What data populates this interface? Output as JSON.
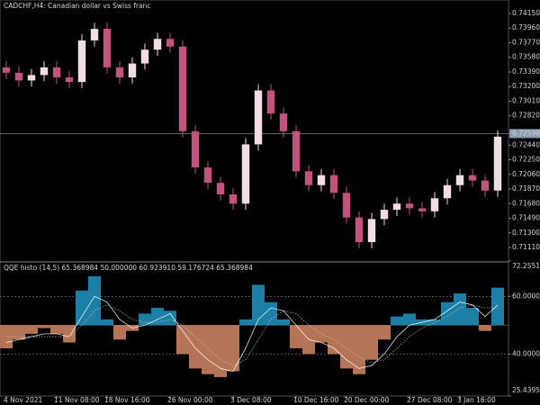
{
  "chart_data": [
    {
      "type": "candlestick",
      "title": "CADCHF,H4:  Canadian dollar vs Swiss franc",
      "open": [
        0.7345,
        0.7338,
        0.7328,
        0.7335,
        0.7345,
        0.7332,
        0.7326,
        0.738,
        0.7395,
        0.7345,
        0.7332,
        0.735,
        0.7368,
        0.7382,
        0.7372,
        0.7262,
        0.7215,
        0.7195,
        0.718,
        0.7168,
        0.7245,
        0.7315,
        0.7285,
        0.7262,
        0.721,
        0.7192,
        0.7205,
        0.7182,
        0.715,
        0.7118,
        0.7148,
        0.716,
        0.7168,
        0.7162,
        0.7158,
        0.7175,
        0.7192,
        0.7205,
        0.7198,
        0.7185
      ],
      "high": [
        0.7353,
        0.7346,
        0.7343,
        0.7353,
        0.7353,
        0.734,
        0.7388,
        0.7403,
        0.7403,
        0.7353,
        0.7358,
        0.7376,
        0.739,
        0.739,
        0.738,
        0.727,
        0.7223,
        0.7203,
        0.7188,
        0.7253,
        0.7323,
        0.7323,
        0.7293,
        0.727,
        0.7218,
        0.7213,
        0.7213,
        0.719,
        0.7158,
        0.7156,
        0.7168,
        0.7176,
        0.7176,
        0.717,
        0.7183,
        0.72,
        0.7213,
        0.7213,
        0.7206,
        0.7263
      ],
      "low": [
        0.733,
        0.732,
        0.732,
        0.7327,
        0.7324,
        0.7318,
        0.7318,
        0.7372,
        0.7337,
        0.7324,
        0.7324,
        0.7342,
        0.736,
        0.7364,
        0.7254,
        0.7207,
        0.7187,
        0.7172,
        0.716,
        0.716,
        0.7237,
        0.7277,
        0.7254,
        0.7202,
        0.7184,
        0.7184,
        0.7174,
        0.7142,
        0.711,
        0.711,
        0.714,
        0.7152,
        0.7154,
        0.715,
        0.715,
        0.7167,
        0.7184,
        0.719,
        0.7177,
        0.7177
      ],
      "close": [
        0.7338,
        0.7328,
        0.7335,
        0.7345,
        0.7332,
        0.7326,
        0.738,
        0.7395,
        0.7345,
        0.7332,
        0.735,
        0.7368,
        0.7382,
        0.7372,
        0.7262,
        0.7215,
        0.7195,
        0.718,
        0.7168,
        0.7245,
        0.7315,
        0.7285,
        0.7262,
        0.721,
        0.7192,
        0.7205,
        0.7182,
        0.715,
        0.7118,
        0.7148,
        0.716,
        0.7168,
        0.7162,
        0.7158,
        0.7175,
        0.7192,
        0.7205,
        0.7198,
        0.7185,
        0.7255
      ],
      "up_color": "#f2dce6",
      "down_color": "#c2527e",
      "ylim": [
        0.70935,
        0.74325
      ],
      "yticks": [
        {
          "value": 0.7415,
          "label": "0.74150"
        },
        {
          "value": 0.7396,
          "label": "0.73960"
        },
        {
          "value": 0.7377,
          "label": "0.73770"
        },
        {
          "value": 0.7358,
          "label": "0.73580"
        },
        {
          "value": 0.7339,
          "label": "0.73390"
        },
        {
          "value": 0.732,
          "label": "0.73200"
        },
        {
          "value": 0.7301,
          "label": "0.73010"
        },
        {
          "value": 0.7282,
          "label": "0.72820"
        },
        {
          "value": 0.7244,
          "label": "0.72440"
        },
        {
          "value": 0.7225,
          "label": "0.72250"
        },
        {
          "value": 0.7206,
          "label": "0.72060"
        },
        {
          "value": 0.7187,
          "label": "0.71870"
        },
        {
          "value": 0.7168,
          "label": "0.71680"
        },
        {
          "value": 0.7149,
          "label": "0.71490"
        },
        {
          "value": 0.713,
          "label": "0.71300"
        },
        {
          "value": 0.7111,
          "label": "0.71110"
        }
      ],
      "last_price": {
        "value": 0.7259,
        "label": "0.72590"
      }
    },
    {
      "type": "histogram-oscillator",
      "title": "QQE histo (14,5) 65.368984 50.000000 60.923910 59.176724 65.368984",
      "categories": [
        "4 Nov 2021",
        null,
        null,
        null,
        "11 Nov 08:00",
        null,
        null,
        null,
        "18 Nov 16:00",
        null,
        null,
        null,
        null,
        "26 Nov 00:00",
        null,
        null,
        null,
        null,
        "3 Dec 08:00",
        null,
        null,
        null,
        null,
        "10 Dec 16:00",
        null,
        null,
        null,
        "20 Dec 00:00",
        null,
        null,
        null,
        null,
        "27 Dec 08:00",
        null,
        null,
        null,
        "3 Jan 16:00",
        null,
        null,
        null
      ],
      "values": [
        42,
        45,
        47,
        49,
        47,
        44,
        62,
        67,
        52,
        45,
        48,
        54,
        56,
        55,
        40,
        35,
        33,
        32,
        34,
        52,
        64,
        58,
        52,
        42,
        40,
        44,
        40,
        35,
        33,
        38,
        45,
        53,
        54,
        52,
        52,
        58,
        61,
        56,
        48,
        63
      ],
      "baseline": 50,
      "up_color": "#1b7fa6",
      "down_color": "#b57456",
      "lines": [
        {
          "color": "#ffffff",
          "values": [
            44,
            45,
            46,
            47,
            47,
            46,
            53,
            60,
            58,
            52,
            49,
            50,
            52,
            54,
            48,
            42,
            38,
            35,
            34,
            42,
            52,
            56,
            55,
            50,
            45,
            44,
            42,
            38,
            35,
            36,
            40,
            46,
            50,
            51,
            52,
            55,
            58,
            57,
            53,
            57
          ]
        },
        {
          "color": "#bbbbbb",
          "values": [
            46,
            46,
            46,
            46,
            46,
            46,
            50,
            55,
            57,
            55,
            52,
            51,
            51,
            52,
            50,
            46,
            42,
            38,
            36,
            38,
            45,
            52,
            55,
            54,
            50,
            47,
            45,
            42,
            39,
            37,
            38,
            42,
            46,
            49,
            51,
            53,
            56,
            57,
            56,
            56
          ]
        }
      ],
      "levels": [
        60,
        40
      ],
      "ylim": [
        25.439537,
        72.255174
      ],
      "yticks": [
        72.255174,
        {
          "value": 60,
          "label": "60.000000"
        },
        {
          "value": 40,
          "label": "40.000000"
        },
        25.439537
      ]
    }
  ]
}
